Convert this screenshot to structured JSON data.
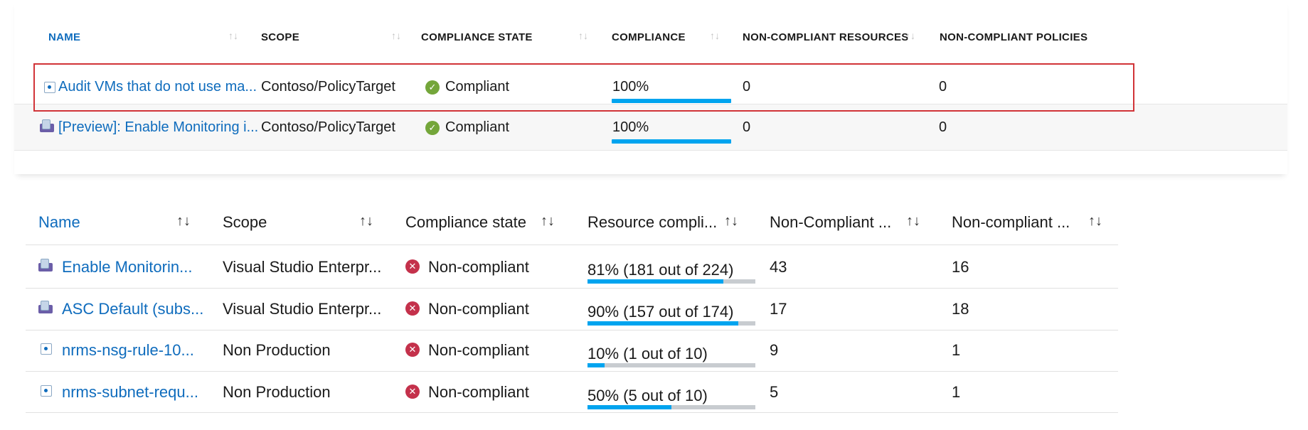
{
  "old_table": {
    "headers": {
      "name": "NAME",
      "scope": "SCOPE",
      "compliance_state": "COMPLIANCE STATE",
      "compliance": "COMPLIANCE",
      "non_compliant_resources": "NON-COMPLIANT RESOURCES",
      "non_compliant_policies": "NON-COMPLIANT POLICIES"
    },
    "sort_glyph": "↑↓",
    "rows": [
      {
        "icon": "policy-definition-icon",
        "name": "Audit VMs that do not use ma...",
        "scope": "Contoso/PolicyTarget",
        "state_icon": "check-circle-icon",
        "state": "Compliant",
        "compliance": "100%",
        "compliance_fraction": 1.0,
        "non_compliant_resources": "0",
        "non_compliant_policies": "0",
        "selected": true
      },
      {
        "icon": "initiative-icon",
        "name": "[Preview]: Enable Monitoring i...",
        "scope": "Contoso/PolicyTarget",
        "state_icon": "check-circle-icon",
        "state": "Compliant",
        "compliance": "100%",
        "compliance_fraction": 1.0,
        "non_compliant_resources": "0",
        "non_compliant_policies": "0",
        "selected": false
      }
    ]
  },
  "new_table": {
    "headers": {
      "name": "Name",
      "scope": "Scope",
      "compliance_state": "Compliance state",
      "resource_compliance": "Resource compli...",
      "non_compliant_resources": "Non-Compliant ...",
      "non_compliant_policies": "Non-compliant ..."
    },
    "sort_glyph": "↑↓",
    "rows": [
      {
        "icon": "initiative-icon",
        "name": "Enable Monitorin...",
        "scope": "Visual Studio Enterpr...",
        "state_icon": "error-circle-icon",
        "state": "Non-compliant",
        "compliance": "81% (181 out of 224)",
        "compliance_fraction": 0.81,
        "non_compliant_resources": "43",
        "non_compliant_policies": "16"
      },
      {
        "icon": "initiative-icon",
        "name": "ASC Default (subs...",
        "scope": "Visual Studio Enterpr...",
        "state_icon": "error-circle-icon",
        "state": "Non-compliant",
        "compliance": "90% (157 out of 174)",
        "compliance_fraction": 0.9,
        "non_compliant_resources": "17",
        "non_compliant_policies": "18"
      },
      {
        "icon": "policy-definition-icon",
        "name": "nrms-nsg-rule-10...",
        "scope": "Non Production",
        "state_icon": "error-circle-icon",
        "state": "Non-compliant",
        "compliance": "10% (1 out of 10)",
        "compliance_fraction": 0.1,
        "non_compliant_resources": "9",
        "non_compliant_policies": "1"
      },
      {
        "icon": "policy-definition-icon",
        "name": "nrms-subnet-requ...",
        "scope": "Non Production",
        "state_icon": "error-circle-icon",
        "state": "Non-compliant",
        "compliance": "50% (5 out of 10)",
        "compliance_fraction": 0.5,
        "non_compliant_resources": "5",
        "non_compliant_policies": "1"
      }
    ]
  },
  "colors": {
    "link": "#0f6cbd",
    "selection_border": "#d13438",
    "compliant_green": "#74a63a",
    "noncompliant_red": "#c4314b",
    "bar_fill": "#00a4ef",
    "bar_track": "#c8ccd0"
  }
}
